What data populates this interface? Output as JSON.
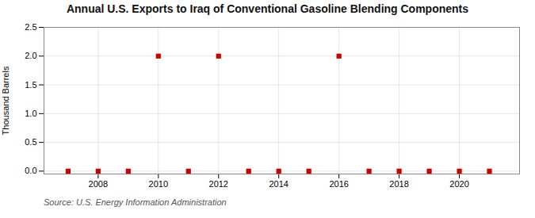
{
  "chart_data": {
    "type": "scatter",
    "title": "Annual U.S. Exports to Iraq of Conventional Gasoline Blending Components",
    "ylabel": "Thousand Barrels",
    "source": "Source: U.S. Energy Information Administration",
    "x": [
      2007,
      2008,
      2009,
      2010,
      2011,
      2012,
      2013,
      2014,
      2015,
      2016,
      2017,
      2018,
      2019,
      2020,
      2021
    ],
    "values": [
      0.0,
      0.0,
      0.0,
      2.0,
      0.0,
      2.0,
      0.0,
      0.0,
      0.0,
      2.0,
      0.0,
      0.0,
      0.0,
      0.0,
      0.0
    ],
    "color": "#cc0000",
    "marker": "square",
    "xlim": [
      2006.2,
      2022.0
    ],
    "xticks": [
      2008,
      2010,
      2012,
      2014,
      2016,
      2018,
      2020
    ],
    "ylim": [
      -0.05,
      2.5
    ],
    "yticks": [
      {
        "value": 0,
        "label": "0.0"
      },
      0.5,
      {
        "value": 1,
        "label": "1.0"
      },
      1.5,
      {
        "value": 2,
        "label": "2.0"
      },
      2.5
    ],
    "grid": true
  }
}
